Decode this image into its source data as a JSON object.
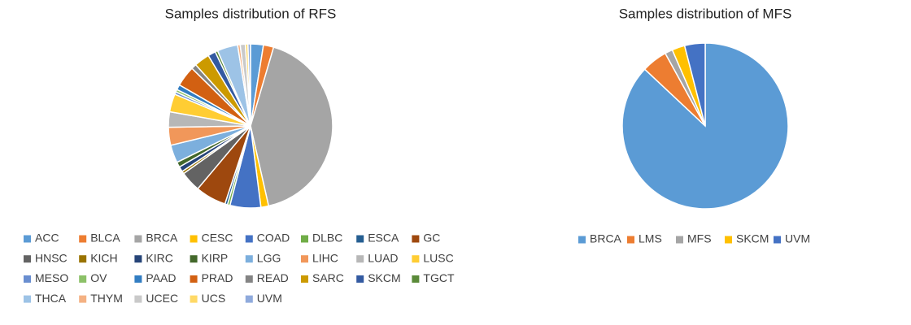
{
  "chart_data": [
    {
      "type": "pie",
      "title": "Samples distribution of RFS",
      "categories": [
        "ACC",
        "BLCA",
        "BRCA",
        "CESC",
        "COAD",
        "DLBC",
        "ESCA",
        "GC",
        "HNSC",
        "KICH",
        "KIRC",
        "KIRP",
        "LGG",
        "LIHC",
        "LUAD",
        "LUSC",
        "MESO",
        "OV",
        "PAAD",
        "PRAD",
        "READ",
        "SARC",
        "SKCM",
        "TGCT",
        "THCA",
        "THYM",
        "UCEC",
        "UCS",
        "UVM"
      ],
      "values": [
        2.5,
        2,
        41.5,
        1.5,
        6,
        0.5,
        0.5,
        6,
        4,
        0.5,
        1,
        1,
        3.5,
        3.5,
        3,
        3.5,
        0.5,
        0.5,
        1,
        4,
        1,
        3,
        1.5,
        0.5,
        4,
        0.5,
        1,
        0.5,
        0.5
      ],
      "colors": [
        "#5b9bd5",
        "#ed7d31",
        "#a5a5a5",
        "#ffc000",
        "#4472c4",
        "#70ad47",
        "#255e91",
        "#9e480e",
        "#636363",
        "#997300",
        "#264478",
        "#43682b",
        "#7cafdd",
        "#f1975a",
        "#b7b7b7",
        "#ffcd33",
        "#698ed0",
        "#8cc168",
        "#327dc2",
        "#d26012",
        "#848484",
        "#cc9a00",
        "#335aa1",
        "#5a8a39",
        "#9dc3e6",
        "#f4b183",
        "#c9c9c9",
        "#ffd966",
        "#8faadc"
      ],
      "legend": "bottom"
    },
    {
      "type": "pie",
      "title": "Samples distribution of MFS",
      "categories": [
        "BRCA",
        "LMS",
        "MFS",
        "SKCM",
        "UVM"
      ],
      "values": [
        87,
        5,
        1.5,
        2.5,
        4
      ],
      "colors": [
        "#5b9bd5",
        "#ed7d31",
        "#a5a5a5",
        "#ffc000",
        "#4472c4"
      ],
      "legend": "bottom"
    }
  ]
}
